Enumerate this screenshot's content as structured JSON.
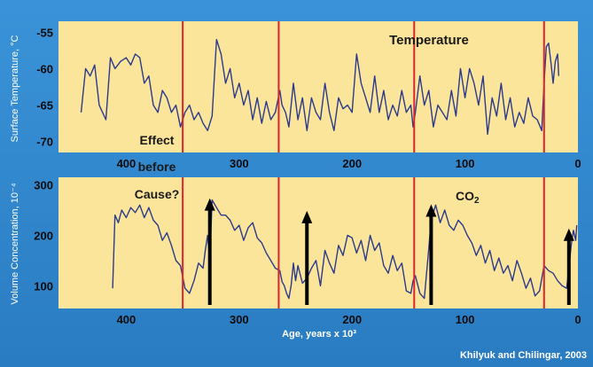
{
  "colors": {
    "background": "#2f86cc",
    "panel": "#fbe59a",
    "line": "#2b3a8c",
    "marker": "#d8262f",
    "arrow": "#000000",
    "text": "#0b0b0b"
  },
  "credit": "Khilyuk and Chilingar, 2003",
  "annotations": {
    "temperature": "Temperature",
    "co2": "CO",
    "co2_sub": "2",
    "effect": "Effect",
    "before": "before",
    "cause": "Cause?"
  },
  "chart_data": [
    {
      "type": "line",
      "ylabel": "Surface Temperature, °C",
      "xlim": [
        460,
        0
      ],
      "ylim": [
        -71.5,
        -53.5
      ],
      "xticks": [
        400,
        300,
        200,
        100,
        0
      ],
      "xtick_labels": [
        "400",
        "300",
        "200",
        "100",
        "0"
      ],
      "yticks": [
        -55,
        -60,
        -65,
        -70
      ],
      "ytick_labels": [
        "-55",
        "-60",
        "-65",
        "-70"
      ],
      "x": [
        440,
        436,
        432,
        428,
        424,
        418,
        414,
        410,
        405,
        400,
        396,
        392,
        388,
        384,
        380,
        376,
        372,
        368,
        364,
        360,
        356,
        352,
        348,
        344,
        340,
        336,
        332,
        328,
        324,
        320,
        316,
        312,
        308,
        304,
        300,
        296,
        292,
        288,
        284,
        280,
        276,
        272,
        268,
        264,
        262,
        259,
        256,
        252,
        248,
        244,
        240,
        236,
        232,
        228,
        224,
        220,
        216,
        212,
        208,
        204,
        200,
        196,
        192,
        188,
        184,
        180,
        176,
        172,
        168,
        164,
        160,
        156,
        152,
        148,
        146,
        144,
        140,
        136,
        132,
        128,
        124,
        120,
        116,
        112,
        108,
        104,
        100,
        96,
        92,
        88,
        84,
        80,
        76,
        72,
        68,
        64,
        60,
        56,
        52,
        48,
        44,
        40,
        36,
        32,
        30,
        28,
        26,
        24,
        22,
        20,
        18,
        17
      ],
      "y": [
        -66,
        -60,
        -61,
        -59.5,
        -65,
        -67,
        -58.5,
        -60,
        -59,
        -58.5,
        -59.5,
        -58,
        -58.5,
        -62,
        -61,
        -65,
        -66,
        -63,
        -64,
        -66,
        -65,
        -68,
        -66,
        -65,
        -67,
        -66,
        -67.5,
        -68.5,
        -66.5,
        -56,
        -58,
        -62,
        -60,
        -64,
        -62,
        -65,
        -63,
        -67,
        -64,
        -67.5,
        -64.5,
        -67,
        -66,
        -63,
        -65,
        -66,
        -68,
        -62,
        -67,
        -64,
        -68.5,
        -64,
        -66,
        -67,
        -62,
        -66,
        -68.5,
        -64,
        -65.5,
        -65,
        -66,
        -58,
        -62,
        -64,
        -66,
        -61,
        -66,
        -63,
        -67,
        -65,
        -66.5,
        -63,
        -66,
        -65,
        -68,
        -66,
        -61,
        -65,
        -63,
        -68,
        -65,
        -66,
        -67,
        -63,
        -66.5,
        -60,
        -64,
        -60,
        -62,
        -65,
        -61,
        -69,
        -64,
        -66.5,
        -62,
        -67,
        -64,
        -68,
        -66,
        -67.5,
        -64,
        -66.5,
        -67,
        -68.5,
        -62,
        -57,
        -56.5,
        -59,
        -62,
        -59,
        -58,
        -61
      ]
    },
    {
      "type": "line",
      "ylabel": "Volume Concentration, 10⁻⁴",
      "xlabel": "Age, years x 10³",
      "xlim": [
        460,
        0
      ],
      "ylim": [
        55,
        315
      ],
      "xticks": [
        400,
        300,
        200,
        100,
        0
      ],
      "xtick_labels": [
        "400",
        "300",
        "200",
        "100",
        "0"
      ],
      "yticks": [
        300,
        200,
        100
      ],
      "ytick_labels": [
        "300",
        "200",
        "100"
      ],
      "x": [
        412,
        410,
        407,
        404,
        400,
        396,
        392,
        388,
        384,
        380,
        376,
        372,
        368,
        364,
        360,
        356,
        352,
        348,
        344,
        340,
        336,
        332,
        330,
        328,
        326,
        324,
        320,
        316,
        312,
        308,
        304,
        300,
        296,
        292,
        288,
        284,
        280,
        276,
        272,
        268,
        264,
        262,
        260,
        258,
        256,
        254,
        252,
        250,
        248,
        244,
        240,
        236,
        232,
        228,
        224,
        220,
        216,
        212,
        208,
        204,
        200,
        196,
        192,
        188,
        184,
        180,
        176,
        172,
        168,
        164,
        160,
        156,
        152,
        148,
        146,
        144,
        140,
        136,
        132,
        130,
        126,
        122,
        118,
        114,
        110,
        106,
        102,
        98,
        94,
        90,
        86,
        82,
        78,
        74,
        70,
        66,
        62,
        58,
        54,
        50,
        46,
        42,
        38,
        34,
        30,
        26,
        22,
        18,
        14,
        10,
        8,
        6,
        4,
        2,
        1
      ],
      "y": [
        95,
        240,
        225,
        250,
        235,
        255,
        245,
        260,
        235,
        255,
        230,
        220,
        190,
        205,
        180,
        150,
        140,
        95,
        85,
        110,
        145,
        135,
        170,
        200,
        150,
        270,
        255,
        240,
        240,
        230,
        210,
        220,
        190,
        215,
        225,
        195,
        185,
        165,
        150,
        135,
        130,
        108,
        100,
        85,
        75,
        100,
        145,
        110,
        140,
        105,
        115,
        135,
        150,
        100,
        170,
        145,
        125,
        180,
        160,
        200,
        195,
        165,
        190,
        150,
        200,
        170,
        185,
        140,
        125,
        160,
        130,
        145,
        90,
        85,
        110,
        120,
        85,
        75,
        175,
        230,
        260,
        225,
        250,
        220,
        210,
        230,
        220,
        200,
        185,
        160,
        180,
        145,
        170,
        130,
        155,
        125,
        140,
        110,
        150,
        125,
        95,
        115,
        80,
        90,
        140,
        130,
        125,
        110,
        100,
        95,
        135,
        180,
        210,
        190,
        220
      ]
    }
  ]
}
